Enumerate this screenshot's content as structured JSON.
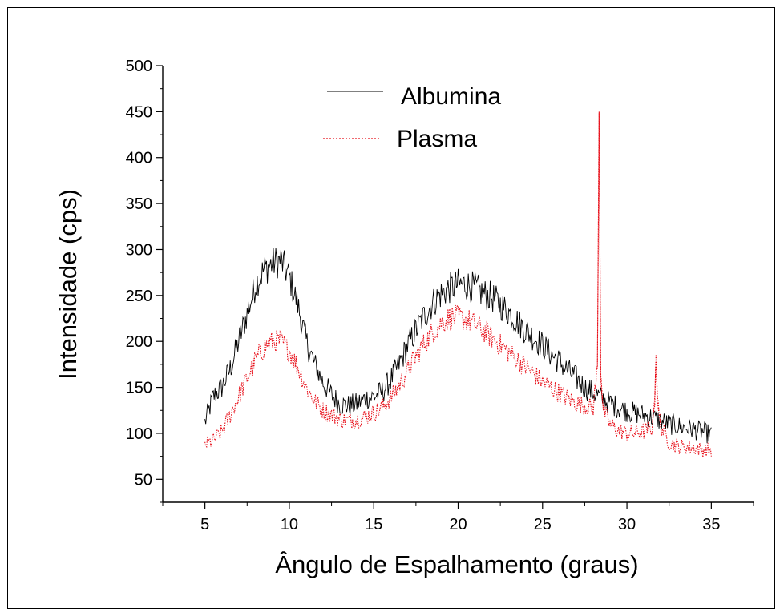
{
  "chart_data": {
    "type": "line",
    "title": "",
    "xlabel": "Ângulo de Espalhamento (graus)",
    "ylabel": "Intensidade (cps)",
    "xlim": [
      2.5,
      37.5
    ],
    "ylim": [
      25,
      500
    ],
    "xticks": [
      5,
      10,
      15,
      20,
      25,
      30,
      35
    ],
    "yticks": [
      50,
      100,
      150,
      200,
      250,
      300,
      350,
      400,
      450,
      500
    ],
    "x_minor_step": 2.5,
    "y_minor_step": 25,
    "legend_position": "top-center",
    "series": [
      {
        "name": "Albumina",
        "color": "#000000",
        "dash": "solid",
        "points": [
          [
            5.0,
            112
          ],
          [
            5.5,
            140
          ],
          [
            6.0,
            150
          ],
          [
            6.5,
            170
          ],
          [
            7.0,
            200
          ],
          [
            7.5,
            230
          ],
          [
            8.0,
            262
          ],
          [
            8.5,
            278
          ],
          [
            9.0,
            285
          ],
          [
            9.5,
            288
          ],
          [
            10.0,
            270
          ],
          [
            10.5,
            240
          ],
          [
            11.0,
            200
          ],
          [
            11.5,
            175
          ],
          [
            12.0,
            155
          ],
          [
            12.5,
            142
          ],
          [
            13.0,
            132
          ],
          [
            13.5,
            130
          ],
          [
            14.0,
            132
          ],
          [
            14.5,
            138
          ],
          [
            15.0,
            140
          ],
          [
            15.5,
            145
          ],
          [
            16.0,
            158
          ],
          [
            16.5,
            175
          ],
          [
            17.0,
            195
          ],
          [
            17.5,
            212
          ],
          [
            18.0,
            228
          ],
          [
            18.5,
            242
          ],
          [
            19.0,
            252
          ],
          [
            19.5,
            258
          ],
          [
            20.0,
            262
          ],
          [
            20.5,
            262
          ],
          [
            21.0,
            258
          ],
          [
            21.5,
            252
          ],
          [
            22.0,
            248
          ],
          [
            22.5,
            240
          ],
          [
            23.0,
            232
          ],
          [
            23.5,
            222
          ],
          [
            24.0,
            212
          ],
          [
            24.5,
            204
          ],
          [
            25.0,
            196
          ],
          [
            25.5,
            186
          ],
          [
            26.0,
            178
          ],
          [
            26.5,
            168
          ],
          [
            27.0,
            160
          ],
          [
            27.5,
            150
          ],
          [
            28.0,
            145
          ],
          [
            28.5,
            138
          ],
          [
            29.0,
            133
          ],
          [
            29.5,
            128
          ],
          [
            30.0,
            124
          ],
          [
            30.5,
            122
          ],
          [
            31.0,
            120
          ],
          [
            31.5,
            117
          ],
          [
            32.0,
            114
          ],
          [
            32.5,
            110
          ],
          [
            33.0,
            108
          ],
          [
            33.5,
            106
          ],
          [
            34.0,
            104
          ],
          [
            34.5,
            102
          ],
          [
            35.0,
            98
          ]
        ]
      },
      {
        "name": "Plasma",
        "color": "#e8101a",
        "dash": "dotted",
        "points": [
          [
            5.0,
            88
          ],
          [
            5.5,
            92
          ],
          [
            6.0,
            102
          ],
          [
            6.5,
            120
          ],
          [
            7.0,
            140
          ],
          [
            7.5,
            160
          ],
          [
            8.0,
            180
          ],
          [
            8.5,
            193
          ],
          [
            9.0,
            200
          ],
          [
            9.5,
            200
          ],
          [
            10.0,
            190
          ],
          [
            10.5,
            172
          ],
          [
            11.0,
            150
          ],
          [
            11.5,
            135
          ],
          [
            12.0,
            125
          ],
          [
            12.5,
            120
          ],
          [
            13.0,
            115
          ],
          [
            13.5,
            114
          ],
          [
            14.0,
            115
          ],
          [
            14.5,
            118
          ],
          [
            15.0,
            122
          ],
          [
            15.5,
            128
          ],
          [
            16.0,
            138
          ],
          [
            16.5,
            152
          ],
          [
            17.0,
            168
          ],
          [
            17.5,
            184
          ],
          [
            18.0,
            198
          ],
          [
            18.5,
            210
          ],
          [
            19.0,
            220
          ],
          [
            19.5,
            226
          ],
          [
            20.0,
            226
          ],
          [
            20.5,
            224
          ],
          [
            21.0,
            218
          ],
          [
            21.5,
            212
          ],
          [
            22.0,
            204
          ],
          [
            22.5,
            196
          ],
          [
            23.0,
            188
          ],
          [
            23.5,
            180
          ],
          [
            24.0,
            172
          ],
          [
            24.5,
            164
          ],
          [
            25.0,
            156
          ],
          [
            25.5,
            150
          ],
          [
            26.0,
            144
          ],
          [
            26.5,
            138
          ],
          [
            27.0,
            133
          ],
          [
            27.5,
            130
          ],
          [
            28.0,
            128
          ],
          [
            28.25,
            170
          ],
          [
            28.35,
            450
          ],
          [
            28.45,
            165
          ],
          [
            28.6,
            125
          ],
          [
            29.0,
            110
          ],
          [
            29.5,
            103
          ],
          [
            30.0,
            100
          ],
          [
            30.5,
            100
          ],
          [
            31.0,
            102
          ],
          [
            31.5,
            106
          ],
          [
            31.65,
            140
          ],
          [
            31.72,
            185
          ],
          [
            31.82,
            132
          ],
          [
            32.0,
            108
          ],
          [
            32.5,
            90
          ],
          [
            33.0,
            86
          ],
          [
            33.5,
            85
          ],
          [
            34.0,
            84
          ],
          [
            34.5,
            82
          ],
          [
            35.0,
            82
          ]
        ]
      }
    ]
  }
}
